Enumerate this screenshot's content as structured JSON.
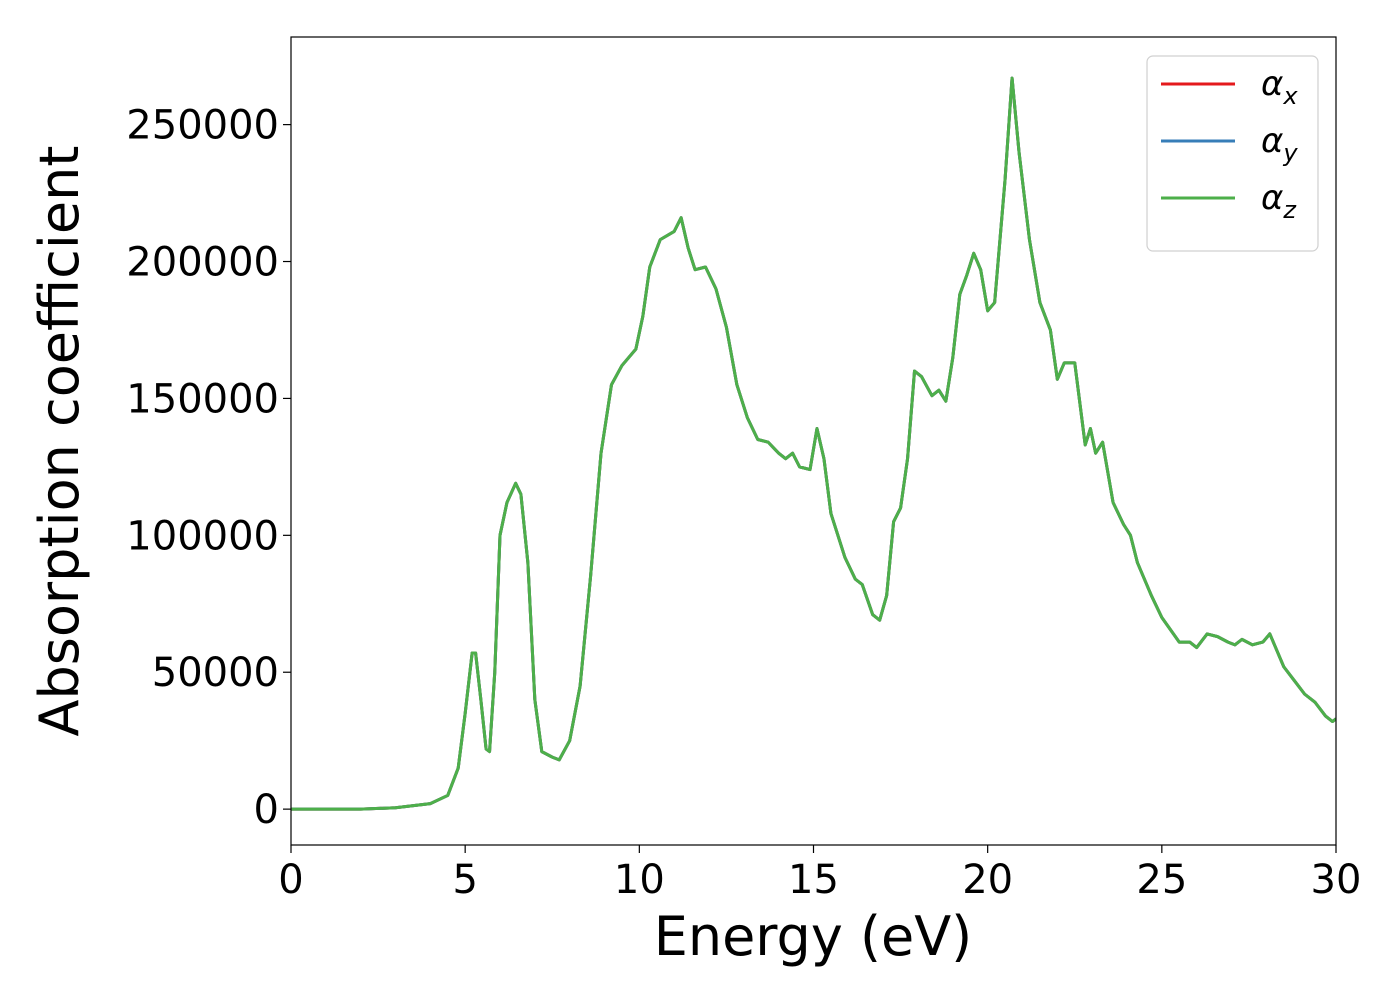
{
  "chart_data": {
    "type": "line",
    "x_label": "Energy (eV)",
    "y_label": "Absorption coefficient",
    "x": [
      0,
      1,
      2,
      3,
      4,
      4.5,
      4.8,
      5.0,
      5.2,
      5.3,
      5.45,
      5.6,
      5.7,
      5.85,
      6.0,
      6.2,
      6.45,
      6.6,
      6.8,
      7.0,
      7.2,
      7.5,
      7.7,
      8.0,
      8.3,
      8.6,
      8.9,
      9.2,
      9.5,
      9.9,
      10.1,
      10.3,
      10.6,
      11.0,
      11.2,
      11.4,
      11.6,
      11.9,
      12.2,
      12.5,
      12.8,
      13.1,
      13.4,
      13.7,
      14.0,
      14.2,
      14.4,
      14.6,
      14.9,
      15.1,
      15.3,
      15.5,
      15.9,
      16.2,
      16.4,
      16.7,
      16.9,
      17.1,
      17.3,
      17.5,
      17.7,
      17.9,
      18.1,
      18.4,
      18.6,
      18.8,
      19.0,
      19.2,
      19.4,
      19.6,
      19.8,
      20.0,
      20.2,
      20.5,
      20.7,
      20.9,
      21.2,
      21.5,
      21.8,
      22.0,
      22.2,
      22.5,
      22.8,
      22.95,
      23.1,
      23.3,
      23.6,
      23.9,
      24.1,
      24.3,
      24.7,
      25.0,
      25.5,
      25.8,
      26.0,
      26.3,
      26.6,
      26.9,
      27.1,
      27.3,
      27.6,
      27.9,
      28.1,
      28.3,
      28.5,
      28.8,
      29.1,
      29.4,
      29.7,
      29.9,
      30
    ],
    "series": [
      {
        "name": "αx",
        "color": "#e41a1c",
        "values": [
          0,
          0,
          0,
          500,
          2000,
          5000,
          15000,
          35000,
          57000,
          57000,
          40000,
          22000,
          21000,
          50000,
          100000,
          112000,
          119000,
          115000,
          90000,
          40000,
          21000,
          19000,
          18000,
          25000,
          45000,
          85000,
          130000,
          155000,
          162000,
          168000,
          180000,
          198000,
          208000,
          211000,
          216000,
          205000,
          197000,
          198000,
          190000,
          176000,
          155000,
          143000,
          135000,
          134000,
          130000,
          128000,
          130000,
          125000,
          124000,
          139000,
          128000,
          108000,
          92000,
          84000,
          82000,
          71000,
          69000,
          78000,
          105000,
          110000,
          128000,
          160000,
          158000,
          151000,
          153000,
          149000,
          165000,
          188000,
          195000,
          203000,
          197000,
          182000,
          185000,
          230000,
          267000,
          240000,
          208000,
          185000,
          175000,
          157000,
          163000,
          163000,
          133000,
          139000,
          130000,
          134000,
          112000,
          104000,
          100000,
          90000,
          78000,
          70000,
          61000,
          61000,
          59000,
          64000,
          63000,
          61000,
          60000,
          62000,
          60000,
          61000,
          64000,
          58000,
          52000,
          47000,
          42000,
          39000,
          34000,
          32000,
          33000
        ]
      },
      {
        "name": "αy",
        "color": "#377eb8",
        "values": [
          0,
          0,
          0,
          500,
          2000,
          5000,
          15000,
          35000,
          57000,
          57000,
          40000,
          22000,
          21000,
          50000,
          100000,
          112000,
          119000,
          115000,
          90000,
          40000,
          21000,
          19000,
          18000,
          25000,
          45000,
          85000,
          130000,
          155000,
          162000,
          168000,
          180000,
          198000,
          208000,
          211000,
          216000,
          205000,
          197000,
          198000,
          190000,
          176000,
          155000,
          143000,
          135000,
          134000,
          130000,
          128000,
          130000,
          125000,
          124000,
          139000,
          128000,
          108000,
          92000,
          84000,
          82000,
          71000,
          69000,
          78000,
          105000,
          110000,
          128000,
          160000,
          158000,
          151000,
          153000,
          149000,
          165000,
          188000,
          195000,
          203000,
          197000,
          182000,
          185000,
          230000,
          267000,
          240000,
          208000,
          185000,
          175000,
          157000,
          163000,
          163000,
          133000,
          139000,
          130000,
          134000,
          112000,
          104000,
          100000,
          90000,
          78000,
          70000,
          61000,
          61000,
          59000,
          64000,
          63000,
          61000,
          60000,
          62000,
          60000,
          61000,
          64000,
          58000,
          52000,
          47000,
          42000,
          39000,
          34000,
          32000,
          33000
        ]
      },
      {
        "name": "αz",
        "color": "#4daf4a",
        "values": [
          0,
          0,
          0,
          500,
          2000,
          5000,
          15000,
          35000,
          57000,
          57000,
          40000,
          22000,
          21000,
          50000,
          100000,
          112000,
          119000,
          115000,
          90000,
          40000,
          21000,
          19000,
          18000,
          25000,
          45000,
          85000,
          130000,
          155000,
          162000,
          168000,
          180000,
          198000,
          208000,
          211000,
          216000,
          205000,
          197000,
          198000,
          190000,
          176000,
          155000,
          143000,
          135000,
          134000,
          130000,
          128000,
          130000,
          125000,
          124000,
          139000,
          128000,
          108000,
          92000,
          84000,
          82000,
          71000,
          69000,
          78000,
          105000,
          110000,
          128000,
          160000,
          158000,
          151000,
          153000,
          149000,
          165000,
          188000,
          195000,
          203000,
          197000,
          182000,
          185000,
          230000,
          267000,
          240000,
          208000,
          185000,
          175000,
          157000,
          163000,
          163000,
          133000,
          139000,
          130000,
          134000,
          112000,
          104000,
          100000,
          90000,
          78000,
          70000,
          61000,
          61000,
          59000,
          64000,
          63000,
          61000,
          60000,
          62000,
          60000,
          61000,
          64000,
          58000,
          52000,
          47000,
          42000,
          39000,
          34000,
          32000,
          33000
        ]
      }
    ],
    "xlim": [
      0,
      30
    ],
    "xticks": [
      0,
      5,
      10,
      15,
      20,
      25,
      30
    ],
    "ylim": [
      -13100,
      282000
    ],
    "yticks": [
      0,
      50000,
      100000,
      150000,
      200000,
      250000
    ],
    "legend": "upper right",
    "grid": false
  }
}
